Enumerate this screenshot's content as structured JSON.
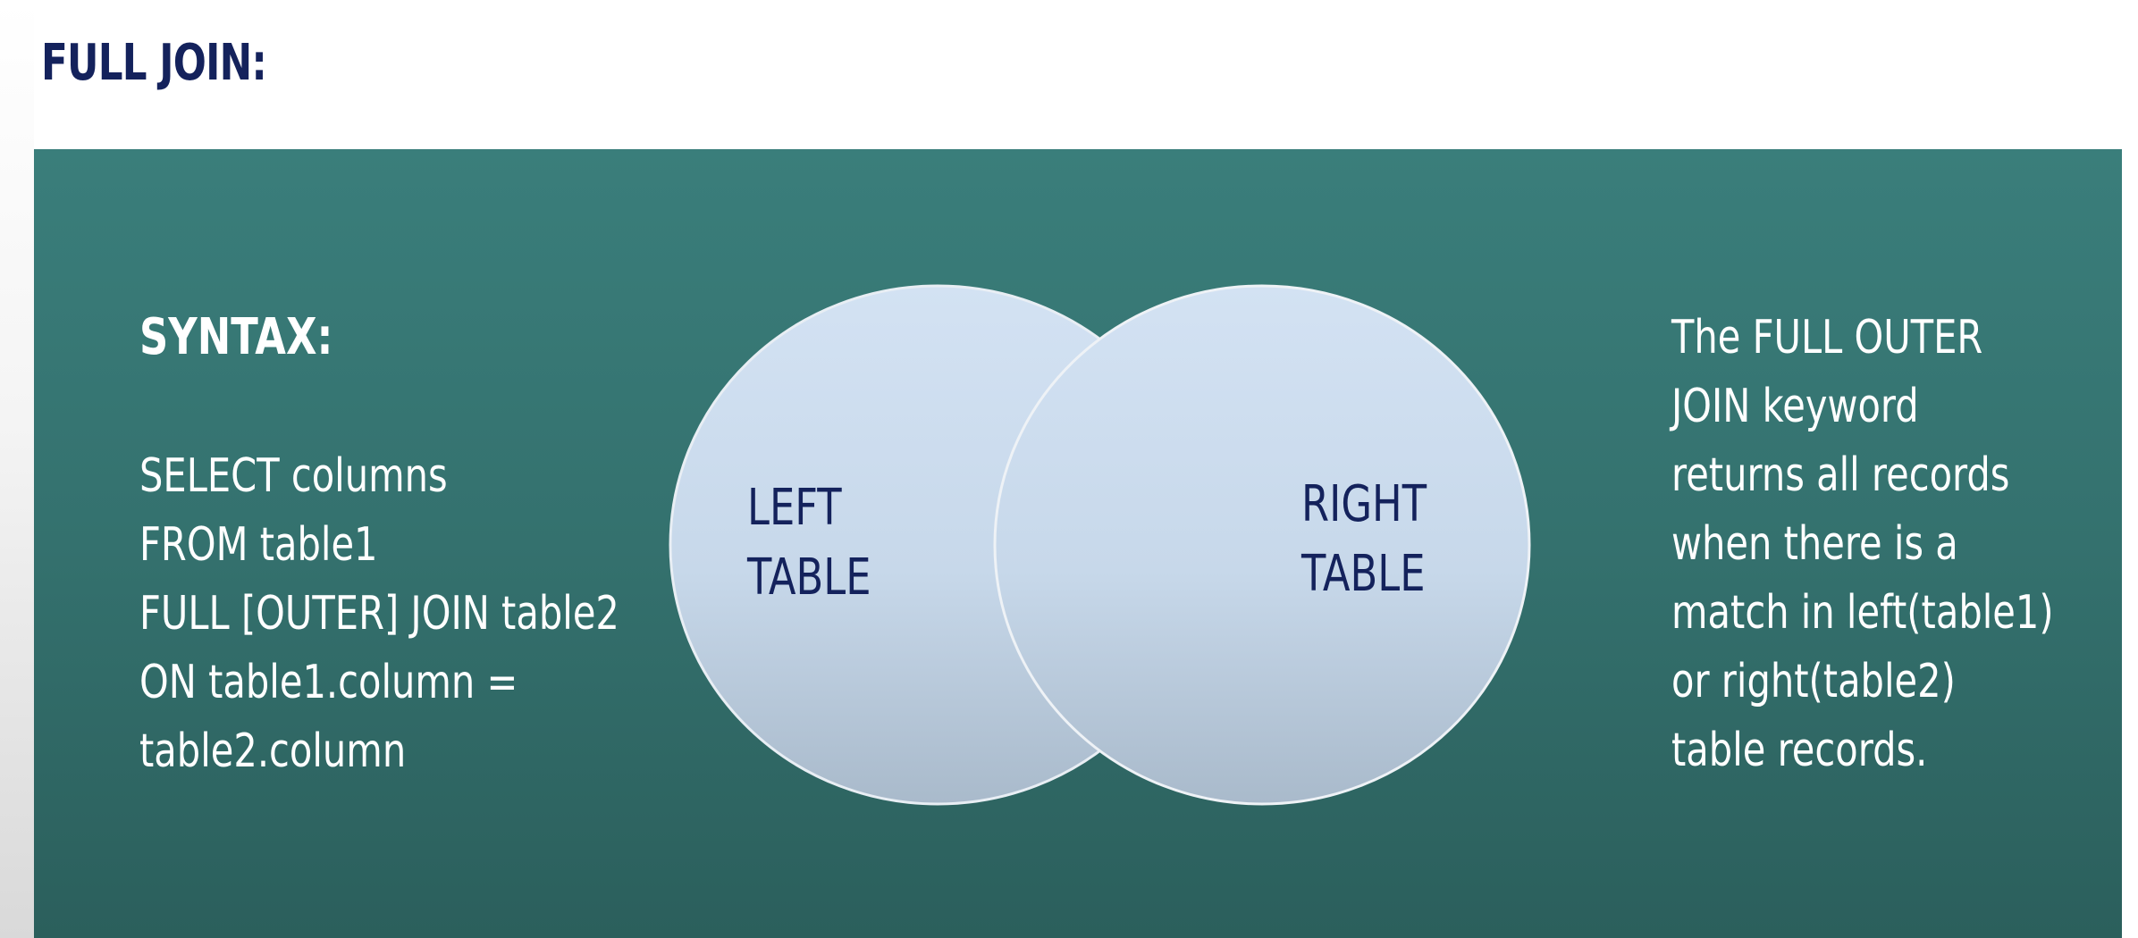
{
  "title": "FULL JOIN:",
  "syntax": {
    "heading": "SYNTAX:",
    "lines": [
      "SELECT columns",
      "FROM table1",
      "FULL [OUTER] JOIN table2",
      "ON table1.column =",
      "table2.column"
    ]
  },
  "diagram": {
    "left_label_lines": [
      "LEFT",
      "TABLE"
    ],
    "right_label_lines": [
      "RIGHT",
      "TABLE"
    ]
  },
  "description": {
    "lines": [
      "The FULL OUTER",
      "JOIN keyword",
      "returns all records",
      "when there is a",
      "match in left(table1)",
      "or right(table2)",
      "table records."
    ]
  },
  "colors": {
    "title": "#14225c",
    "panel": "#34716e",
    "circle_fill": "#cddff0",
    "label": "#14225c"
  }
}
